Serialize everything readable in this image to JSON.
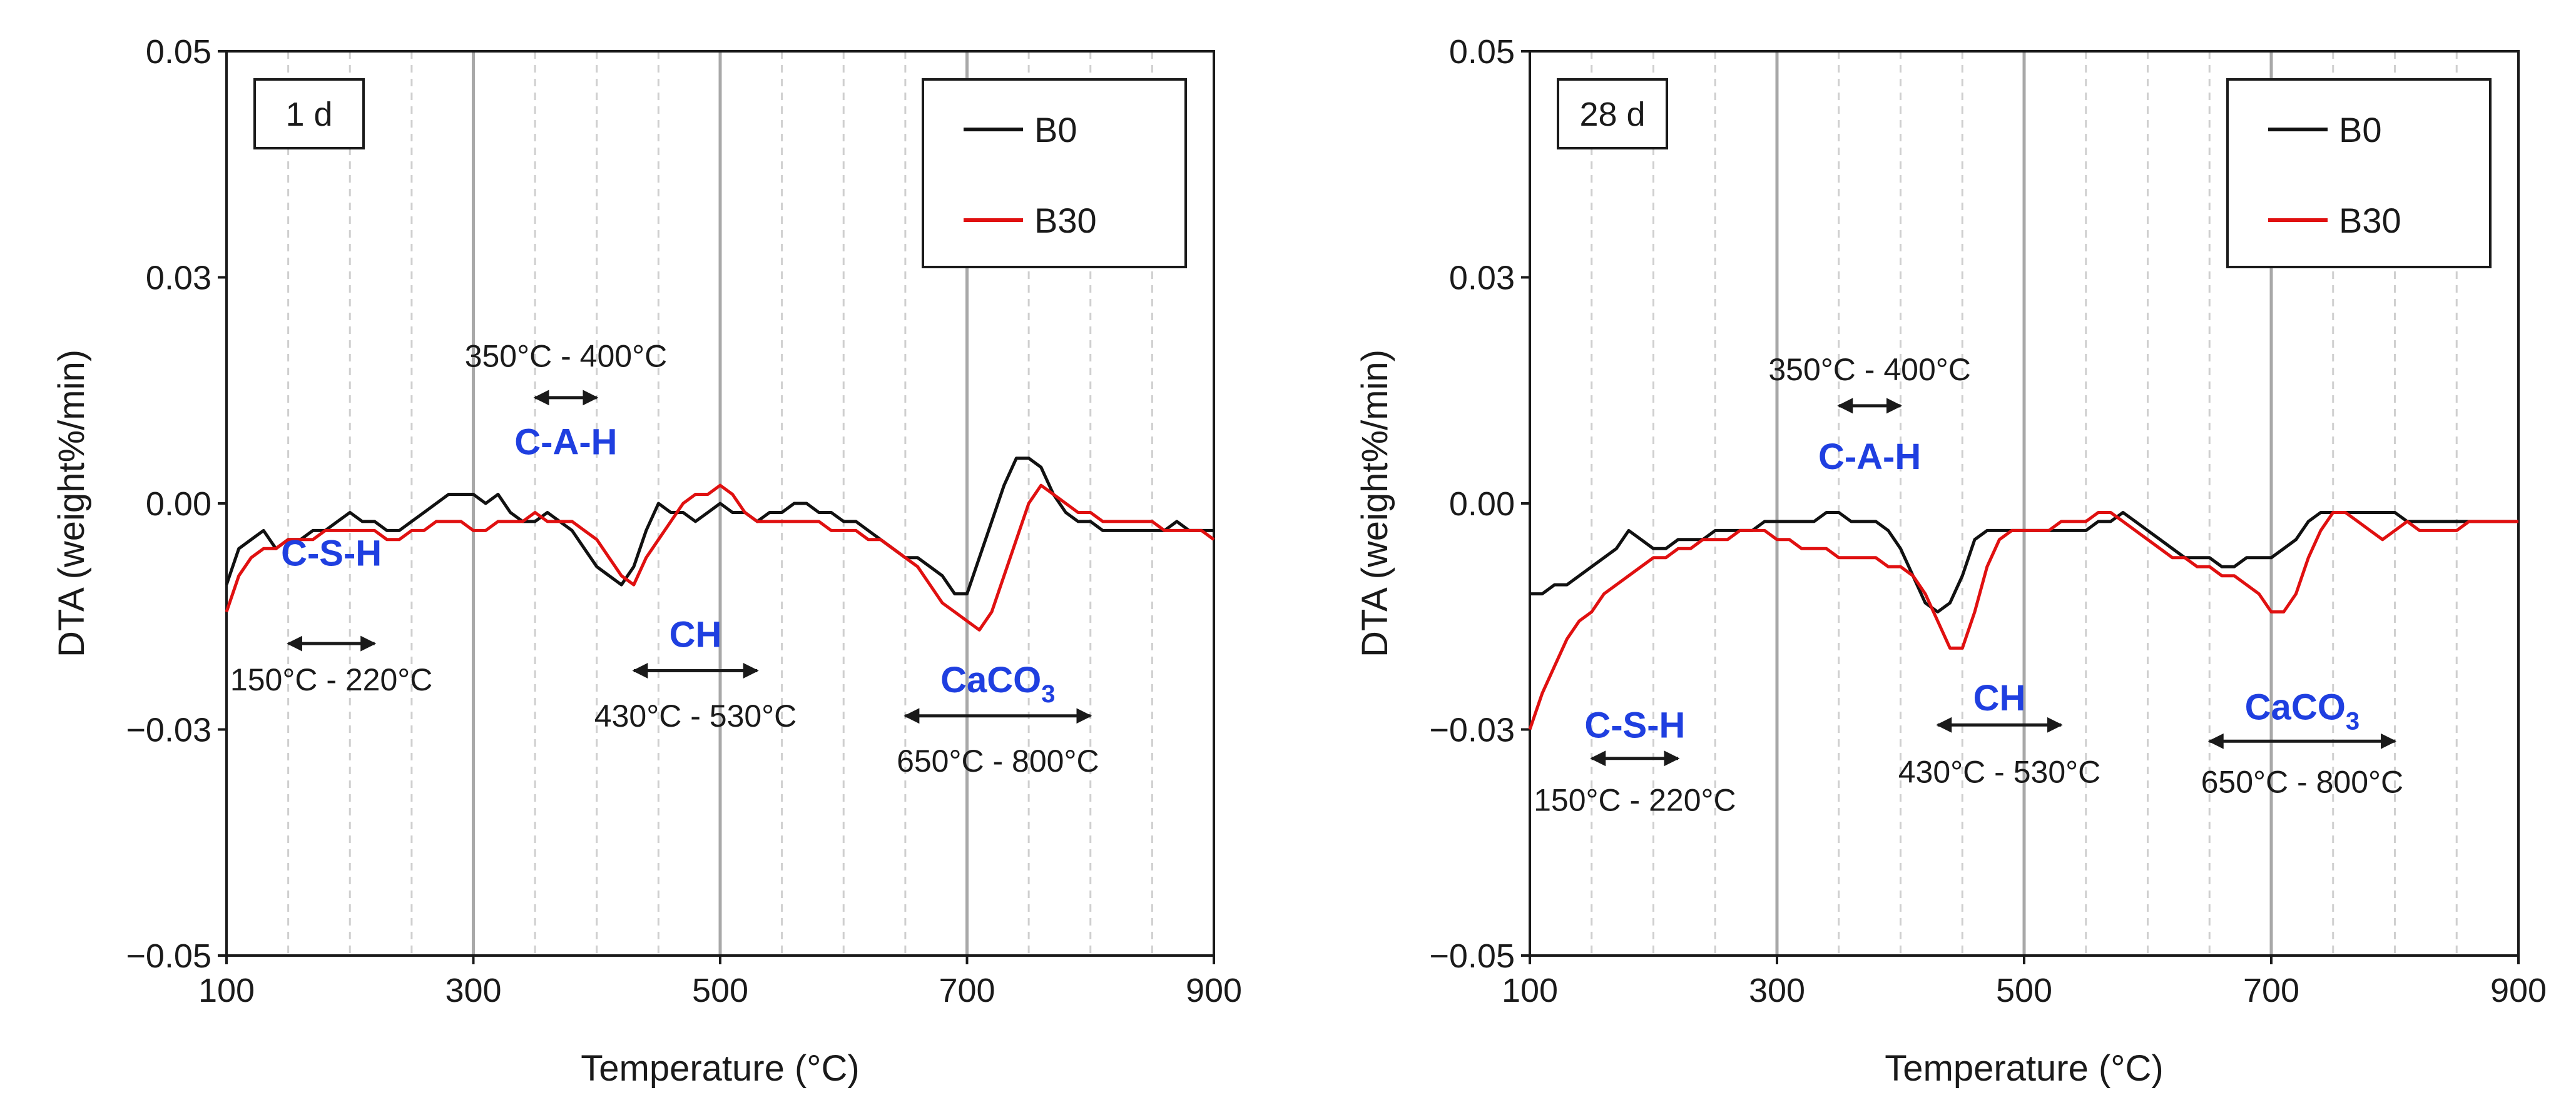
{
  "chart_data": [
    {
      "type": "line",
      "panel_label": "1 d",
      "xlabel": "Temperature (°C)",
      "ylabel": "DTA (weight%/min)",
      "xlim": [
        100,
        900
      ],
      "ylim": [
        -0.05,
        0.05
      ],
      "x_ticks": [
        "100",
        "300",
        "500",
        "700",
        "900"
      ],
      "y_ticks": [
        "0.05",
        "0.03",
        "0.00",
        "−0.03",
        "−0.05"
      ],
      "y_tick_values": [
        0.05,
        0.025,
        0.0,
        -0.025,
        -0.05
      ],
      "x_major_grid": [
        300,
        500,
        700
      ],
      "x_minor_grid": [
        150,
        200,
        250,
        350,
        400,
        450,
        550,
        600,
        650,
        750,
        800,
        850
      ],
      "legend": {
        "position": "top-right",
        "entries": [
          "B0",
          "B30"
        ]
      },
      "series": [
        {
          "name": "B0",
          "color": "#111111",
          "x": [
            100,
            110,
            120,
            130,
            140,
            150,
            160,
            170,
            180,
            190,
            200,
            210,
            220,
            230,
            240,
            250,
            260,
            270,
            280,
            290,
            300,
            310,
            320,
            330,
            340,
            350,
            360,
            370,
            380,
            390,
            400,
            410,
            420,
            430,
            440,
            450,
            460,
            470,
            480,
            490,
            500,
            510,
            520,
            530,
            540,
            550,
            560,
            570,
            580,
            590,
            600,
            610,
            620,
            630,
            640,
            650,
            660,
            670,
            680,
            690,
            700,
            710,
            720,
            730,
            740,
            750,
            760,
            770,
            780,
            790,
            800,
            810,
            820,
            830,
            840,
            850,
            860,
            870,
            880,
            890,
            900
          ],
          "y": [
            -0.009,
            -0.005,
            -0.004,
            -0.003,
            -0.005,
            -0.004,
            -0.004,
            -0.003,
            -0.003,
            -0.002,
            -0.001,
            -0.002,
            -0.002,
            -0.003,
            -0.003,
            -0.002,
            -0.001,
            0.0,
            0.001,
            0.001,
            0.001,
            0.0,
            0.001,
            -0.001,
            -0.002,
            -0.002,
            -0.001,
            -0.002,
            -0.003,
            -0.005,
            -0.007,
            -0.008,
            -0.009,
            -0.007,
            -0.003,
            0.0,
            -0.001,
            -0.001,
            -0.002,
            -0.001,
            0.0,
            -0.001,
            -0.001,
            -0.002,
            -0.001,
            -0.001,
            0.0,
            0.0,
            -0.001,
            -0.001,
            -0.002,
            -0.002,
            -0.003,
            -0.004,
            -0.005,
            -0.006,
            -0.006,
            -0.007,
            -0.008,
            -0.01,
            -0.01,
            -0.006,
            -0.002,
            0.002,
            0.005,
            0.005,
            0.004,
            0.001,
            -0.001,
            -0.002,
            -0.002,
            -0.003,
            -0.003,
            -0.003,
            -0.003,
            -0.003,
            -0.003,
            -0.002,
            -0.003,
            -0.003,
            -0.003
          ]
        },
        {
          "name": "B30",
          "color": "#e01010",
          "x": [
            100,
            110,
            120,
            130,
            140,
            150,
            160,
            170,
            180,
            190,
            200,
            210,
            220,
            230,
            240,
            250,
            260,
            270,
            280,
            290,
            300,
            310,
            320,
            330,
            340,
            350,
            360,
            370,
            380,
            390,
            400,
            410,
            420,
            430,
            440,
            450,
            460,
            470,
            480,
            490,
            500,
            510,
            520,
            530,
            540,
            550,
            560,
            570,
            580,
            590,
            600,
            610,
            620,
            630,
            640,
            650,
            660,
            670,
            680,
            690,
            700,
            710,
            720,
            730,
            740,
            750,
            760,
            770,
            780,
            790,
            800,
            810,
            820,
            830,
            840,
            850,
            860,
            870,
            880,
            890,
            900
          ],
          "y": [
            -0.012,
            -0.008,
            -0.006,
            -0.005,
            -0.005,
            -0.004,
            -0.004,
            -0.004,
            -0.003,
            -0.003,
            -0.003,
            -0.003,
            -0.003,
            -0.004,
            -0.004,
            -0.003,
            -0.003,
            -0.002,
            -0.002,
            -0.002,
            -0.003,
            -0.003,
            -0.002,
            -0.002,
            -0.002,
            -0.001,
            -0.002,
            -0.002,
            -0.002,
            -0.003,
            -0.004,
            -0.006,
            -0.008,
            -0.009,
            -0.006,
            -0.004,
            -0.002,
            0.0,
            0.001,
            0.001,
            0.002,
            0.001,
            -0.001,
            -0.002,
            -0.002,
            -0.002,
            -0.002,
            -0.002,
            -0.002,
            -0.003,
            -0.003,
            -0.003,
            -0.004,
            -0.004,
            -0.005,
            -0.006,
            -0.007,
            -0.009,
            -0.011,
            -0.012,
            -0.013,
            -0.014,
            -0.012,
            -0.008,
            -0.004,
            0.0,
            0.002,
            0.001,
            0.0,
            -0.001,
            -0.001,
            -0.002,
            -0.002,
            -0.002,
            -0.002,
            -0.002,
            -0.003,
            -0.003,
            -0.003,
            -0.003,
            -0.004
          ]
        }
      ],
      "annotations": [
        {
          "label": "C-S-H",
          "range_text": "150°C - 220°C",
          "start": 150,
          "end": 220,
          "label_y": -0.0055,
          "arrow_y": -0.0155,
          "range_y": -0.0195
        },
        {
          "label": "C-A-H",
          "range_text": "350°C - 400°C",
          "start": 350,
          "end": 400,
          "label_y": 0.0068,
          "arrow_y": 0.0117,
          "range_y": 0.0163
        },
        {
          "label": "CH",
          "range_text": "430°C - 530°C",
          "start": 430,
          "end": 530,
          "label_y": -0.0145,
          "arrow_y": -0.0185,
          "range_y": -0.0235
        },
        {
          "label": "CaCO",
          "subscript": "3",
          "range_text": "650°C - 800°C",
          "start": 650,
          "end": 800,
          "label_y": -0.0195,
          "arrow_y": -0.0235,
          "range_y": -0.0285
        }
      ]
    },
    {
      "type": "line",
      "panel_label": "28 d",
      "xlabel": "Temperature (°C)",
      "ylabel": "DTA (weight%/min)",
      "xlim": [
        100,
        900
      ],
      "ylim": [
        -0.05,
        0.05
      ],
      "x_ticks": [
        "100",
        "300",
        "500",
        "700",
        "900"
      ],
      "y_ticks": [
        "0.05",
        "0.03",
        "0.00",
        "−0.03",
        "−0.05"
      ],
      "y_tick_values": [
        0.05,
        0.025,
        0.0,
        -0.025,
        -0.05
      ],
      "x_major_grid": [
        300,
        500,
        700
      ],
      "x_minor_grid": [
        150,
        200,
        250,
        350,
        400,
        450,
        550,
        600,
        650,
        750,
        800,
        850
      ],
      "legend": {
        "position": "top-right",
        "entries": [
          "B0",
          "B30"
        ]
      },
      "series": [
        {
          "name": "B0",
          "color": "#111111",
          "x": [
            100,
            110,
            120,
            130,
            140,
            150,
            160,
            170,
            180,
            190,
            200,
            210,
            220,
            230,
            240,
            250,
            260,
            270,
            280,
            290,
            300,
            310,
            320,
            330,
            340,
            350,
            360,
            370,
            380,
            390,
            400,
            410,
            420,
            430,
            440,
            450,
            460,
            470,
            480,
            490,
            500,
            510,
            520,
            530,
            540,
            550,
            560,
            570,
            580,
            590,
            600,
            610,
            620,
            630,
            640,
            650,
            660,
            670,
            680,
            690,
            700,
            710,
            720,
            730,
            740,
            750,
            760,
            770,
            780,
            790,
            800,
            810,
            820,
            830,
            840,
            850,
            860,
            870,
            880,
            890,
            900
          ],
          "y": [
            -0.01,
            -0.01,
            -0.009,
            -0.009,
            -0.008,
            -0.007,
            -0.006,
            -0.005,
            -0.003,
            -0.004,
            -0.005,
            -0.005,
            -0.004,
            -0.004,
            -0.004,
            -0.003,
            -0.003,
            -0.003,
            -0.003,
            -0.002,
            -0.002,
            -0.002,
            -0.002,
            -0.002,
            -0.001,
            -0.001,
            -0.002,
            -0.002,
            -0.002,
            -0.003,
            -0.005,
            -0.008,
            -0.011,
            -0.012,
            -0.011,
            -0.008,
            -0.004,
            -0.003,
            -0.003,
            -0.003,
            -0.003,
            -0.003,
            -0.003,
            -0.003,
            -0.003,
            -0.003,
            -0.002,
            -0.002,
            -0.001,
            -0.002,
            -0.003,
            -0.004,
            -0.005,
            -0.006,
            -0.006,
            -0.006,
            -0.007,
            -0.007,
            -0.006,
            -0.006,
            -0.006,
            -0.005,
            -0.004,
            -0.002,
            -0.001,
            -0.001,
            -0.001,
            -0.001,
            -0.001,
            -0.001,
            -0.001,
            -0.002,
            -0.002,
            -0.002,
            -0.002,
            -0.002,
            -0.002,
            -0.002,
            -0.002,
            -0.002,
            -0.002
          ]
        },
        {
          "name": "B30",
          "color": "#e01010",
          "x": [
            100,
            110,
            120,
            130,
            140,
            150,
            160,
            170,
            180,
            190,
            200,
            210,
            220,
            230,
            240,
            250,
            260,
            270,
            280,
            290,
            300,
            310,
            320,
            330,
            340,
            350,
            360,
            370,
            380,
            390,
            400,
            410,
            420,
            430,
            440,
            450,
            460,
            470,
            480,
            490,
            500,
            510,
            520,
            530,
            540,
            550,
            560,
            570,
            580,
            590,
            600,
            610,
            620,
            630,
            640,
            650,
            660,
            670,
            680,
            690,
            700,
            710,
            720,
            730,
            740,
            750,
            760,
            770,
            780,
            790,
            800,
            810,
            820,
            830,
            840,
            850,
            860,
            870,
            880,
            890,
            900
          ],
          "y": [
            -0.025,
            -0.021,
            -0.018,
            -0.015,
            -0.013,
            -0.012,
            -0.01,
            -0.009,
            -0.008,
            -0.007,
            -0.006,
            -0.006,
            -0.005,
            -0.005,
            -0.004,
            -0.004,
            -0.004,
            -0.003,
            -0.003,
            -0.003,
            -0.004,
            -0.004,
            -0.005,
            -0.005,
            -0.005,
            -0.006,
            -0.006,
            -0.006,
            -0.006,
            -0.007,
            -0.007,
            -0.008,
            -0.01,
            -0.013,
            -0.016,
            -0.016,
            -0.012,
            -0.007,
            -0.004,
            -0.003,
            -0.003,
            -0.003,
            -0.003,
            -0.002,
            -0.002,
            -0.002,
            -0.001,
            -0.001,
            -0.002,
            -0.003,
            -0.004,
            -0.005,
            -0.006,
            -0.006,
            -0.007,
            -0.007,
            -0.008,
            -0.008,
            -0.009,
            -0.01,
            -0.012,
            -0.012,
            -0.01,
            -0.006,
            -0.003,
            -0.001,
            -0.001,
            -0.002,
            -0.003,
            -0.004,
            -0.003,
            -0.002,
            -0.003,
            -0.003,
            -0.003,
            -0.003,
            -0.002,
            -0.002,
            -0.002,
            -0.002,
            -0.002
          ]
        }
      ],
      "annotations": [
        {
          "label": "C-S-H",
          "range_text": "150°C - 220°C",
          "start": 150,
          "end": 220,
          "label_y": -0.0245,
          "arrow_y": -0.0282,
          "range_y": -0.0328
        },
        {
          "label": "C-A-H",
          "range_text": "350°C - 400°C",
          "start": 350,
          "end": 400,
          "label_y": 0.0052,
          "arrow_y": 0.0108,
          "range_y": 0.0148
        },
        {
          "label": "CH",
          "range_text": "430°C - 530°C",
          "start": 430,
          "end": 530,
          "label_y": -0.0215,
          "arrow_y": -0.0245,
          "range_y": -0.0297
        },
        {
          "label": "CaCO",
          "subscript": "3",
          "range_text": "650°C - 800°C",
          "start": 650,
          "end": 800,
          "label_y": -0.0225,
          "arrow_y": -0.0263,
          "range_y": -0.0308
        }
      ]
    }
  ]
}
